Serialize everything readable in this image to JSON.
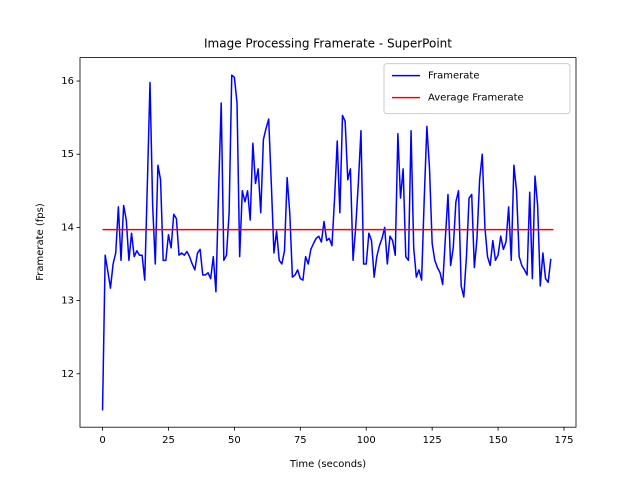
{
  "chart_data": {
    "type": "line",
    "title": "Image Processing Framerate - SuperPoint",
    "x_label": "Time (seconds)",
    "y_label": "Framerate (fps)",
    "xlim": [
      -8.55,
      179.55
    ],
    "ylim": [
      11.27,
      16.32
    ],
    "xticks": [
      0,
      25,
      50,
      75,
      100,
      125,
      150,
      175
    ],
    "yticks": [
      12,
      13,
      14,
      15,
      16
    ],
    "legend": "upper right",
    "series": [
      {
        "name": "Framerate",
        "color": "#0000ff",
        "x": [
          0,
          1,
          2,
          3,
          4,
          5,
          6,
          7,
          8,
          9,
          10,
          11,
          12,
          13,
          14,
          15,
          16,
          17,
          18,
          19,
          20,
          21,
          22,
          23,
          24,
          25,
          26,
          27,
          28,
          29,
          30,
          31,
          32,
          33,
          34,
          35,
          36,
          37,
          38,
          39,
          40,
          41,
          42,
          43,
          44,
          45,
          46,
          47,
          48,
          49,
          50,
          51,
          52,
          53,
          54,
          55,
          56,
          57,
          58,
          59,
          60,
          61,
          62,
          63,
          64,
          65,
          66,
          67,
          68,
          69,
          70,
          71,
          72,
          73,
          74,
          75,
          76,
          77,
          78,
          79,
          80,
          81,
          82,
          83,
          84,
          85,
          86,
          87,
          88,
          89,
          90,
          91,
          92,
          93,
          94,
          95,
          96,
          97,
          98,
          99,
          100,
          101,
          102,
          103,
          104,
          105,
          106,
          107,
          108,
          109,
          110,
          111,
          112,
          113,
          114,
          115,
          116,
          117,
          118,
          119,
          120,
          121,
          122,
          123,
          124,
          125,
          126,
          127,
          128,
          129,
          130,
          131,
          132,
          133,
          134,
          135,
          136,
          137,
          138,
          139,
          140,
          141,
          142,
          143,
          144,
          145,
          146,
          147,
          148,
          149,
          150,
          151,
          152,
          153,
          154,
          155,
          156,
          157,
          158,
          159,
          160,
          161,
          162,
          163,
          164,
          165,
          166,
          167,
          168,
          169,
          170
        ],
        "values": [
          11.5,
          13.62,
          13.4,
          13.17,
          13.5,
          13.65,
          14.28,
          13.55,
          14.3,
          14.1,
          13.55,
          13.92,
          13.6,
          13.68,
          13.62,
          13.62,
          13.28,
          14.6,
          15.98,
          14.3,
          13.5,
          14.85,
          14.65,
          13.55,
          13.55,
          13.9,
          13.72,
          14.18,
          14.12,
          13.62,
          13.65,
          13.62,
          13.67,
          13.6,
          13.5,
          13.42,
          13.65,
          13.7,
          13.35,
          13.35,
          13.38,
          13.3,
          13.6,
          13.12,
          14.5,
          15.7,
          13.55,
          13.62,
          14.2,
          16.08,
          16.05,
          15.7,
          13.6,
          14.5,
          14.35,
          14.5,
          14.1,
          15.15,
          14.6,
          14.8,
          14.2,
          15.2,
          15.35,
          15.48,
          14.6,
          13.65,
          13.95,
          13.55,
          13.5,
          13.68,
          14.68,
          14.2,
          13.32,
          13.35,
          13.42,
          13.3,
          13.28,
          13.6,
          13.5,
          13.7,
          13.78,
          13.85,
          13.88,
          13.8,
          14.08,
          13.82,
          13.85,
          13.75,
          14.4,
          15.18,
          14.2,
          15.53,
          15.45,
          14.65,
          14.8,
          13.55,
          14.0,
          14.6,
          15.32,
          13.5,
          13.5,
          13.92,
          13.82,
          13.32,
          13.6,
          13.75,
          13.85,
          14.0,
          13.5,
          13.88,
          13.82,
          13.62,
          15.28,
          14.4,
          14.8,
          13.6,
          13.55,
          15.32,
          13.72,
          13.32,
          13.42,
          13.28,
          14.4,
          15.38,
          14.8,
          13.78,
          13.55,
          13.45,
          13.38,
          13.22,
          13.85,
          14.45,
          13.48,
          13.72,
          14.35,
          14.5,
          13.2,
          13.05,
          13.6,
          14.4,
          14.45,
          13.45,
          13.85,
          14.65,
          15.0,
          14.0,
          13.6,
          13.48,
          13.82,
          13.55,
          13.62,
          13.88,
          13.7,
          13.8,
          14.28,
          13.55,
          14.85,
          14.5,
          13.6,
          13.48,
          13.42,
          13.35,
          14.48,
          13.3,
          14.7,
          14.3,
          13.2,
          13.65,
          13.3,
          13.25,
          13.57
        ]
      },
      {
        "name": "Average Framerate",
        "color": "#ff0000",
        "x": [
          0,
          171
        ],
        "values": [
          13.97,
          13.97
        ]
      }
    ]
  }
}
